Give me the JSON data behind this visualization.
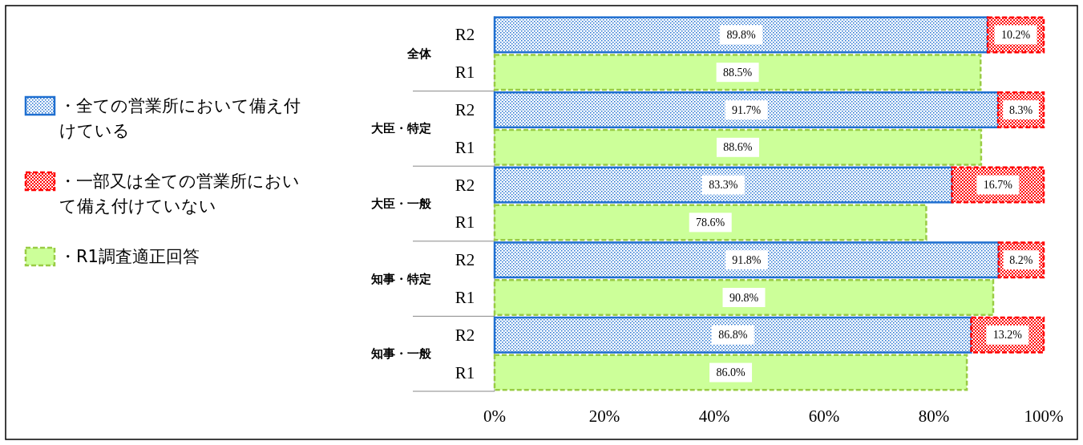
{
  "chart_data": {
    "type": "bar",
    "orientation": "horizontal",
    "stacked": true,
    "categories": [
      "R2",
      "R1",
      "R2",
      "R1",
      "R2",
      "R1",
      "R2",
      "R1",
      "R2",
      "R1"
    ],
    "annotations": [
      "全体",
      "大臣・特定",
      "大臣・一般",
      "知事・特定",
      "知事・一般"
    ],
    "series": [
      {
        "name": "・全ての営業所において備え付けている",
        "color": "#1f6fd0",
        "values": [
          89.8,
          null,
          91.7,
          null,
          83.3,
          null,
          91.8,
          null,
          86.8,
          null
        ],
        "value_labels": [
          "89.8%",
          null,
          "91.7%",
          null,
          "83.3%",
          null,
          "91.8%",
          null,
          "86.8%",
          null
        ]
      },
      {
        "name": "・一部又は全ての営業所において備え付けていない",
        "color": "#ff0000",
        "values": [
          10.2,
          null,
          8.3,
          null,
          16.7,
          null,
          8.2,
          null,
          13.2,
          null
        ],
        "value_labels": [
          "10.2%",
          null,
          "8.3%",
          null,
          "16.7%",
          null,
          "8.2%",
          null,
          "13.2%",
          null
        ]
      },
      {
        "name": "・R1調査適正回答",
        "color": "#ccff99",
        "values": [
          null,
          88.5,
          null,
          88.6,
          null,
          78.6,
          null,
          90.8,
          null,
          86.0
        ],
        "value_labels": [
          null,
          "88.5%",
          null,
          "88.6%",
          null,
          "78.6%",
          null,
          "90.8%",
          null,
          "86.0%"
        ]
      }
    ],
    "xlim": [
      0,
      100
    ],
    "xticks": [
      {
        "value": 0,
        "label": "0%"
      },
      {
        "value": 20,
        "label": "20%"
      },
      {
        "value": 40,
        "label": "40%"
      },
      {
        "value": 60,
        "label": "60%"
      },
      {
        "value": 80,
        "label": "80%"
      },
      {
        "value": 100,
        "label": "100%"
      }
    ],
    "legend": "left"
  }
}
